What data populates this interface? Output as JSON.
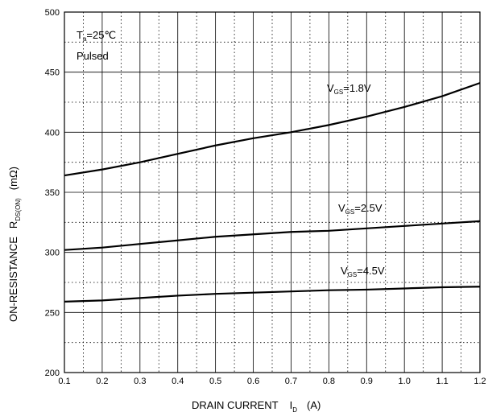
{
  "chart_data": {
    "type": "line",
    "xlabel": {
      "main": "DRAIN CURRENT",
      "symbol": "I",
      "subscript": "D",
      "unit": "(A)"
    },
    "ylabel": {
      "main": "ON-RESISTANCE",
      "symbol": "R",
      "subscript": "DS(ON)",
      "unit": "(mΩ)"
    },
    "xlim": [
      0.1,
      1.2
    ],
    "ylim": [
      200,
      500
    ],
    "x_ticks": [
      "0.1",
      "0.2",
      "0.3",
      "0.4",
      "0.5",
      "0.6",
      "0.7",
      "0.8",
      "0.9",
      "1.0",
      "1.1",
      "1.2"
    ],
    "y_ticks": [
      "200",
      "250",
      "300",
      "350",
      "400",
      "450",
      "500"
    ],
    "grid": true,
    "conditions": {
      "temp_symbol": "T",
      "temp_subscript": "a",
      "temp_value": "=25℃",
      "mode": "Pulsed"
    },
    "series": [
      {
        "name": "V_GS=1.8V",
        "label_symbol": "V",
        "label_subscript": "GS",
        "label_value": "=1.8V",
        "x": [
          0.1,
          0.2,
          0.3,
          0.4,
          0.5,
          0.6,
          0.7,
          0.8,
          0.9,
          1.0,
          1.1,
          1.2
        ],
        "y": [
          364,
          369,
          375,
          382,
          389,
          395,
          400,
          406,
          413,
          421,
          430,
          441
        ]
      },
      {
        "name": "V_GS=2.5V",
        "label_symbol": "V",
        "label_subscript": "GS",
        "label_value": "=2.5V",
        "x": [
          0.1,
          0.2,
          0.3,
          0.4,
          0.5,
          0.6,
          0.7,
          0.8,
          0.9,
          1.0,
          1.1,
          1.2
        ],
        "y": [
          302,
          304,
          307,
          310,
          313,
          315,
          317,
          318,
          320,
          322,
          324,
          326
        ]
      },
      {
        "name": "V_GS=4.5V",
        "label_symbol": "V",
        "label_subscript": "GS",
        "label_value": "=4.5V",
        "x": [
          0.1,
          0.2,
          0.3,
          0.4,
          0.5,
          0.6,
          0.7,
          0.8,
          0.9,
          1.0,
          1.1,
          1.2
        ],
        "y": [
          259,
          260,
          262,
          264,
          265.5,
          266.5,
          267.5,
          268.5,
          269,
          270,
          271,
          271.5
        ]
      }
    ]
  }
}
